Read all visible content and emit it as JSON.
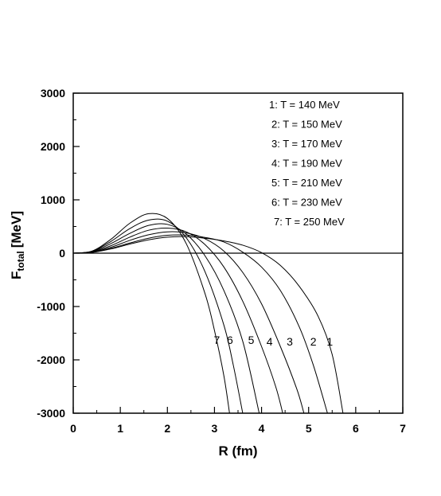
{
  "chart_data": {
    "type": "line",
    "xlabel": "R (fm)",
    "ylabel": {
      "main": "F",
      "sub": "total",
      "unit": "[MeV]"
    },
    "xlim": [
      0,
      7
    ],
    "ylim": [
      -3000,
      3000
    ],
    "xticks": [
      "0",
      "1",
      "2",
      "3",
      "4",
      "5",
      "6",
      "7"
    ],
    "yticks": [
      "3000",
      "2000",
      "1000",
      "0",
      "-1000",
      "-2000",
      "-3000"
    ],
    "grid": false,
    "legend_position": "top-right",
    "legend": [
      "1: T = 140 MeV",
      "2: T = 150 MeV",
      "3: T = 170 MeV",
      "4: T = 190 MeV",
      "5: T = 210 MeV",
      "6: T = 230 MeV",
      "7: T = 250 MeV"
    ],
    "series": [
      {
        "name": "1",
        "points": [
          [
            0,
            0
          ],
          [
            0.4,
            15
          ],
          [
            0.8,
            80
          ],
          [
            1.2,
            170
          ],
          [
            1.6,
            250
          ],
          [
            2.0,
            300
          ],
          [
            2.4,
            310
          ],
          [
            2.8,
            280
          ],
          [
            3.2,
            230
          ],
          [
            3.6,
            150
          ],
          [
            4.0,
            10
          ],
          [
            4.4,
            -230
          ],
          [
            4.8,
            -620
          ],
          [
            5.2,
            -1180
          ],
          [
            5.5,
            -1900
          ],
          [
            5.73,
            -3000
          ]
        ]
      },
      {
        "name": "2",
        "points": [
          [
            0,
            0
          ],
          [
            0.4,
            15
          ],
          [
            0.8,
            90
          ],
          [
            1.2,
            190
          ],
          [
            1.6,
            280
          ],
          [
            2.0,
            335
          ],
          [
            2.4,
            340
          ],
          [
            2.8,
            295
          ],
          [
            3.2,
            210
          ],
          [
            3.6,
            20
          ],
          [
            4.0,
            -260
          ],
          [
            4.4,
            -700
          ],
          [
            4.8,
            -1380
          ],
          [
            5.1,
            -2100
          ],
          [
            5.4,
            -3000
          ]
        ]
      },
      {
        "name": "3",
        "points": [
          [
            0,
            0
          ],
          [
            0.4,
            20
          ],
          [
            0.8,
            110
          ],
          [
            1.2,
            240
          ],
          [
            1.6,
            345
          ],
          [
            2.0,
            400
          ],
          [
            2.4,
            380
          ],
          [
            2.8,
            270
          ],
          [
            3.2,
            40
          ],
          [
            3.6,
            -360
          ],
          [
            4.0,
            -950
          ],
          [
            4.4,
            -1750
          ],
          [
            4.75,
            -2550
          ],
          [
            4.9,
            -3000
          ]
        ]
      },
      {
        "name": "4",
        "points": [
          [
            0,
            0
          ],
          [
            0.4,
            25
          ],
          [
            0.8,
            140
          ],
          [
            1.2,
            300
          ],
          [
            1.6,
            430
          ],
          [
            2.0,
            470
          ],
          [
            2.4,
            400
          ],
          [
            2.8,
            160
          ],
          [
            3.2,
            -260
          ],
          [
            3.6,
            -900
          ],
          [
            4.0,
            -1750
          ],
          [
            4.3,
            -2500
          ],
          [
            4.45,
            -3000
          ]
        ]
      },
      {
        "name": "5",
        "points": [
          [
            0,
            0
          ],
          [
            0.4,
            30
          ],
          [
            0.8,
            180
          ],
          [
            1.2,
            370
          ],
          [
            1.6,
            520
          ],
          [
            2.0,
            540
          ],
          [
            2.4,
            360
          ],
          [
            2.8,
            -50
          ],
          [
            3.2,
            -700
          ],
          [
            3.6,
            -1650
          ],
          [
            3.95,
            -3000
          ]
        ]
      },
      {
        "name": "6",
        "points": [
          [
            0,
            0
          ],
          [
            0.4,
            35
          ],
          [
            0.8,
            220
          ],
          [
            1.2,
            460
          ],
          [
            1.6,
            620
          ],
          [
            2.0,
            600
          ],
          [
            2.4,
            290
          ],
          [
            2.8,
            -350
          ],
          [
            3.2,
            -1350
          ],
          [
            3.4,
            -2100
          ],
          [
            3.6,
            -3000
          ]
        ]
      },
      {
        "name": "7",
        "points": [
          [
            0,
            0
          ],
          [
            0.4,
            40
          ],
          [
            0.8,
            260
          ],
          [
            1.2,
            560
          ],
          [
            1.6,
            740
          ],
          [
            2.0,
            650
          ],
          [
            2.4,
            180
          ],
          [
            2.8,
            -760
          ],
          [
            3.0,
            -1450
          ],
          [
            3.2,
            -2300
          ],
          [
            3.32,
            -3000
          ]
        ]
      }
    ],
    "curve_labels": [
      {
        "text": "7",
        "x": 3.05,
        "y": -1700
      },
      {
        "text": "6",
        "x": 3.33,
        "y": -1700
      },
      {
        "text": "5",
        "x": 3.78,
        "y": -1700
      },
      {
        "text": "4",
        "x": 4.17,
        "y": -1730
      },
      {
        "text": "3",
        "x": 4.6,
        "y": -1730
      },
      {
        "text": "2",
        "x": 5.1,
        "y": -1730
      },
      {
        "text": "1",
        "x": 5.45,
        "y": -1730
      }
    ]
  }
}
